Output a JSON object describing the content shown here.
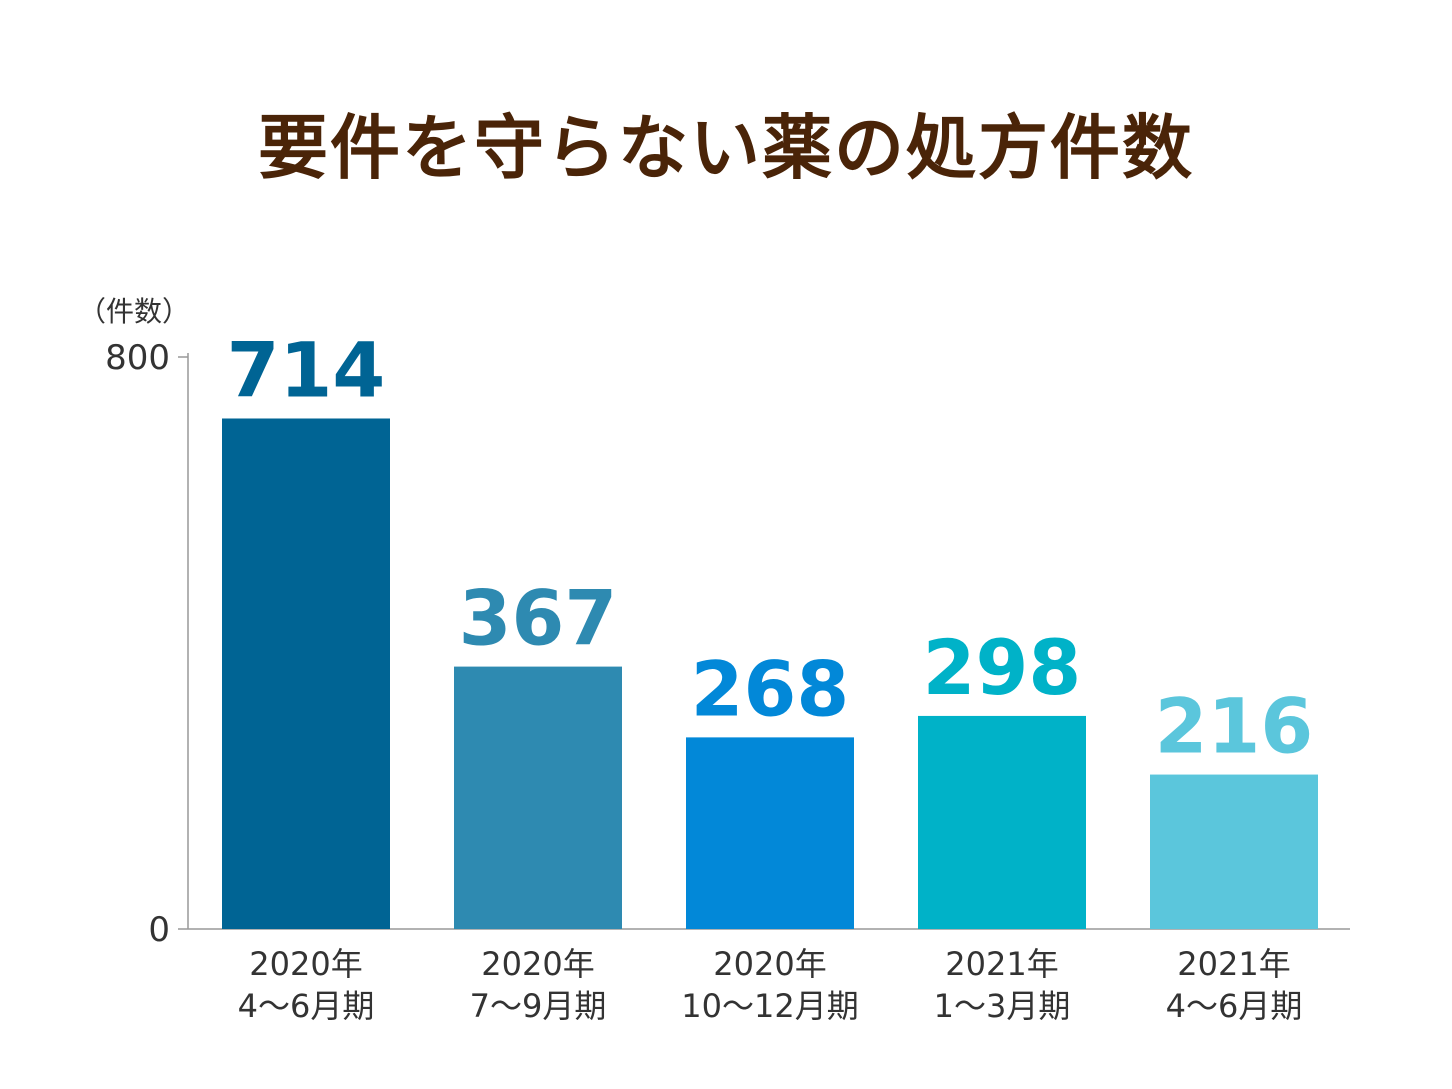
{
  "chart_data": {
    "type": "bar",
    "title": "要件を守らない薬の処方件数",
    "ylabel": "（件数）",
    "xlabel": "",
    "ylim": [
      0,
      800
    ],
    "yticks": [
      0,
      800
    ],
    "grid": false,
    "categories": [
      {
        "line1": "2020年",
        "line2": "4〜6月期"
      },
      {
        "line1": "2020年",
        "line2": "7〜9月期"
      },
      {
        "line1": "2020年",
        "line2": "10〜12月期"
      },
      {
        "line1": "2021年",
        "line2": "1〜3月期"
      },
      {
        "line1": "2021年",
        "line2": "4〜6月期"
      }
    ],
    "values": [
      714,
      367,
      268,
      298,
      216
    ],
    "colors": [
      "#006494",
      "#2e8ab1",
      "#0288d8",
      "#00b2c8",
      "#5bc6dc"
    ],
    "label_colors": [
      "#006494",
      "#2e8ab1",
      "#0288d8",
      "#00b2c8",
      "#5bc6dc"
    ],
    "axis_color": "#999999"
  }
}
